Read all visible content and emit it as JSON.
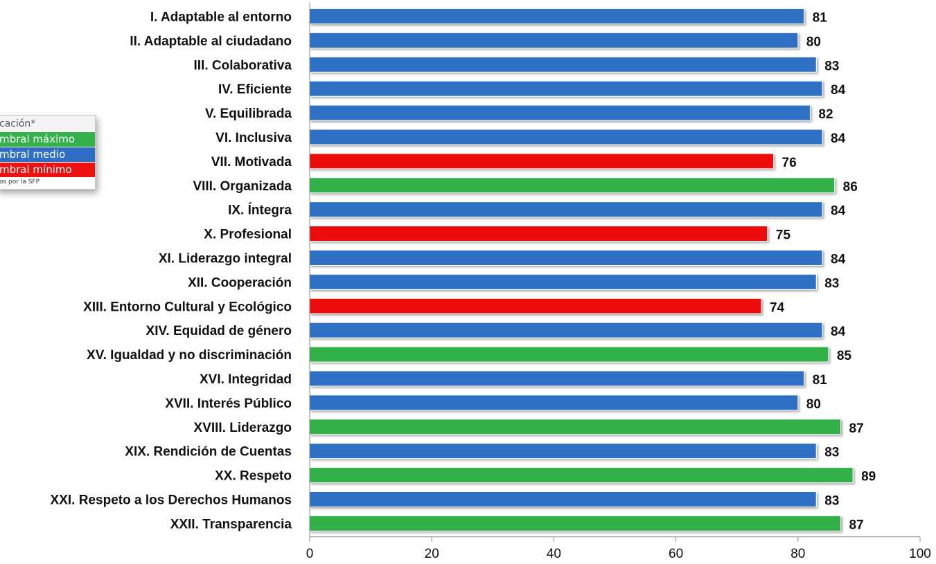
{
  "colors": {
    "umbral_maximo": "#33b14a",
    "umbral_medio": "#2f6fc3",
    "umbral_minimo": "#ee1111"
  },
  "legend": {
    "title": "cación*",
    "items": [
      {
        "label": "mbral máximo",
        "color_key": "umbral_maximo"
      },
      {
        "label": "mbral medio",
        "color_key": "umbral_medio"
      },
      {
        "label": "mbral mínimo",
        "color_key": "umbral_minimo"
      }
    ],
    "note": "os por la SFP"
  },
  "chart_data": {
    "type": "bar",
    "orientation": "horizontal",
    "xlim": [
      0,
      100
    ],
    "ticks": [
      0,
      20,
      40,
      60,
      80,
      100
    ],
    "grid": false,
    "legend_position": "left",
    "categories": [
      "I. Adaptable al entorno",
      "II. Adaptable al ciudadano",
      "III. Colaborativa",
      "IV. Eficiente",
      "V. Equilibrada",
      "VI. Inclusiva",
      "VII. Motivada",
      "VIII. Organizada",
      "IX. Íntegra",
      "X. Profesional",
      "XI. Liderazgo integral",
      "XII. Cooperación",
      "XIII. Entorno Cultural y Ecológico",
      "XIV. Equidad de género",
      "XV. Igualdad y no discriminación",
      "XVI. Integridad",
      "XVII. Interés Público",
      "XVIII. Liderazgo",
      "XIX. Rendición de Cuentas",
      "XX. Respeto",
      "XXI. Respeto a los Derechos Humanos",
      "XXII. Transparencia"
    ],
    "values": [
      81,
      80,
      83,
      84,
      82,
      84,
      76,
      86,
      84,
      75,
      84,
      83,
      74,
      84,
      85,
      81,
      80,
      87,
      83,
      89,
      83,
      87
    ],
    "bar_colors": [
      "umbral_medio",
      "umbral_medio",
      "umbral_medio",
      "umbral_medio",
      "umbral_medio",
      "umbral_medio",
      "umbral_minimo",
      "umbral_maximo",
      "umbral_medio",
      "umbral_minimo",
      "umbral_medio",
      "umbral_medio",
      "umbral_minimo",
      "umbral_medio",
      "umbral_maximo",
      "umbral_medio",
      "umbral_medio",
      "umbral_maximo",
      "umbral_medio",
      "umbral_maximo",
      "umbral_medio",
      "umbral_maximo"
    ]
  }
}
